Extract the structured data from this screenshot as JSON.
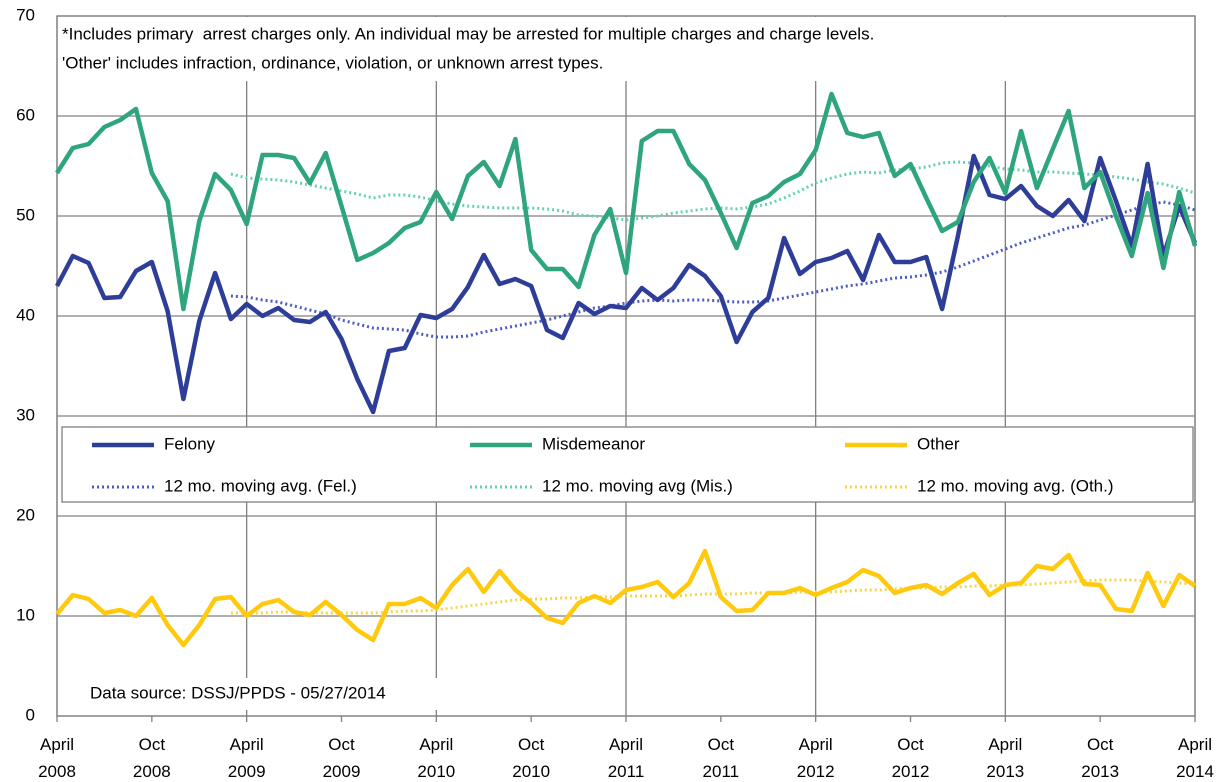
{
  "chart_data": {
    "type": "line",
    "annotations": [
      "*Includes primary  arrest charges only. An individual may be arrested for multiple charges and charge levels.",
      "'Other' includes infraction, ordinance, violation, or unknown arrest types.",
      "Data source: DSSJ/PPDS - 05/27/2014"
    ],
    "categories": [
      "April 2008",
      null,
      null,
      null,
      null,
      null,
      "Oct 2008",
      null,
      null,
      null,
      null,
      null,
      "April 2009",
      null,
      null,
      null,
      null,
      null,
      "Oct 2009",
      null,
      null,
      null,
      null,
      null,
      "April 2010",
      null,
      null,
      null,
      null,
      null,
      "Oct 2010",
      null,
      null,
      null,
      null,
      null,
      "April 2011",
      null,
      null,
      null,
      null,
      null,
      "Oct 2011",
      null,
      null,
      null,
      null,
      null,
      "April 2012",
      null,
      null,
      null,
      null,
      null,
      "Oct 2012",
      null,
      null,
      null,
      null,
      null,
      "April 2013",
      null,
      null,
      null,
      null,
      null,
      "Oct 2013",
      null,
      null,
      null,
      null,
      null,
      "April 2014"
    ],
    "ylim": [
      0,
      70
    ],
    "yticks": [
      0,
      10,
      20,
      30,
      40,
      50,
      60,
      70
    ],
    "grid": true,
    "legend": "center",
    "series": [
      {
        "name": "Felony",
        "color": "#2e3d98",
        "style": "solid",
        "values": [
          43,
          46,
          45.3,
          41.8,
          41.9,
          44.5,
          45.4,
          40.5,
          31.7,
          39.5,
          44.3,
          39.7,
          41.2,
          40,
          40.8,
          39.6,
          39.4,
          40.4,
          37.7,
          33.7,
          30.4,
          36.5,
          36.8,
          40.1,
          39.8,
          40.7,
          42.9,
          46.1,
          43.2,
          43.7,
          43,
          38.6,
          37.8,
          41.3,
          40.2,
          41,
          40.8,
          42.8,
          41.6,
          42.8,
          45.1,
          44,
          42,
          37.4,
          40.4,
          41.8,
          47.8,
          44.2,
          45.4,
          45.8,
          46.5,
          43.6,
          48.1,
          45.4,
          45.4,
          45.9,
          40.7,
          48,
          56,
          52.1,
          51.7,
          53,
          51,
          50,
          51.6,
          49.5,
          55.8,
          51.5,
          47,
          55.2,
          46,
          51,
          47.3
        ]
      },
      {
        "name": "Misdemeanor",
        "color": "#2ea57d",
        "style": "solid",
        "values": [
          54.3,
          56.8,
          57.2,
          58.9,
          59.6,
          60.7,
          54.3,
          51.5,
          40.7,
          49.5,
          54.2,
          52.6,
          49.2,
          56.1,
          56.1,
          55.8,
          53.3,
          56.3,
          51,
          45.6,
          46.3,
          47.3,
          48.8,
          49.4,
          52.4,
          49.7,
          54,
          55.4,
          53,
          57.7,
          46.6,
          44.7,
          44.7,
          42.9,
          48.1,
          50.7,
          44.3,
          57.5,
          58.5,
          58.5,
          55.2,
          53.6,
          50.3,
          46.8,
          51.3,
          52,
          53.4,
          54.2,
          56.6,
          62.2,
          58.3,
          57.9,
          58.3,
          54,
          55.2,
          51.8,
          48.5,
          49.4,
          53.4,
          55.8,
          52.3,
          58.5,
          52.8,
          56.7,
          60.5,
          52.8,
          54.4,
          50,
          46,
          52.3,
          44.8,
          52.4,
          47
        ]
      },
      {
        "name": "Other",
        "color": "#ffc90e",
        "style": "solid",
        "values": [
          10.2,
          12.1,
          11.7,
          10.3,
          10.6,
          10,
          11.8,
          9.1,
          7.1,
          9.1,
          11.7,
          11.9,
          10,
          11.2,
          11.6,
          10.4,
          10.1,
          11.4,
          10.1,
          8.6,
          7.6,
          11.2,
          11.2,
          11.8,
          10.8,
          13.1,
          14.7,
          12.4,
          14.5,
          12.6,
          11.3,
          9.8,
          9.3,
          11.3,
          12,
          11.3,
          12.6,
          12.9,
          13.4,
          11.9,
          13.3,
          16.5,
          11.9,
          10.5,
          10.6,
          12.3,
          12.3,
          12.8,
          12.1,
          12.8,
          13.4,
          14.6,
          14,
          12.3,
          12.8,
          13.1,
          12.2,
          13.3,
          14.2,
          12.1,
          13.1,
          13.3,
          15,
          14.7,
          16.1,
          13.2,
          13.1,
          10.7,
          10.5,
          14.3,
          11,
          14.1,
          13
        ]
      },
      {
        "name": "12 mo. moving avg. (Fel.)",
        "color": "#4a5cc4",
        "style": "dotted",
        "values": [
          null,
          null,
          null,
          null,
          null,
          null,
          null,
          null,
          null,
          null,
          null,
          42,
          41.9,
          41.6,
          41.4,
          41,
          40.6,
          40.2,
          39.6,
          39.2,
          38.8,
          38.7,
          38.6,
          38.2,
          37.9,
          37.9,
          38,
          38.4,
          38.7,
          39,
          39.3,
          39.6,
          40,
          40.4,
          40.8,
          41,
          41.3,
          41.5,
          41.6,
          41.5,
          41.6,
          41.6,
          41.5,
          41.4,
          41.4,
          41.5,
          41.8,
          42.1,
          42.4,
          42.7,
          43,
          43.2,
          43.5,
          43.8,
          43.9,
          44.1,
          44.4,
          44.9,
          45.5,
          46.1,
          46.7,
          47.3,
          47.8,
          48.3,
          48.8,
          49.1,
          49.6,
          50.1,
          50.6,
          51.1,
          51.4,
          51.1,
          50.6
        ]
      },
      {
        "name": "12 mo. moving avg (Mis.)",
        "color": "#62d2b0",
        "style": "dotted",
        "values": [
          null,
          null,
          null,
          null,
          null,
          null,
          null,
          null,
          null,
          null,
          null,
          54.2,
          53.8,
          53.7,
          53.6,
          53.4,
          53.1,
          52.8,
          52.5,
          52.2,
          51.8,
          52.1,
          52.1,
          51.9,
          51.5,
          51.2,
          51,
          50.9,
          50.8,
          50.8,
          50.8,
          50.7,
          50.5,
          50.1,
          50,
          49.8,
          49.6,
          49.8,
          50,
          50.3,
          50.5,
          50.7,
          50.8,
          50.7,
          50.9,
          51.2,
          51.8,
          52.5,
          53.3,
          53.8,
          54.2,
          54.4,
          54.3,
          54.6,
          54.7,
          54.9,
          55.3,
          55.4,
          55.3,
          55,
          54.7,
          54.6,
          54.4,
          54.4,
          54.3,
          54.2,
          54.1,
          53.9,
          53.7,
          53.4,
          53.2,
          52.8,
          52.3
        ]
      },
      {
        "name": "12 mo. moving avg. (Oth.)",
        "color": "#f8d64a",
        "style": "dotted",
        "values": [
          null,
          null,
          null,
          null,
          null,
          null,
          null,
          null,
          null,
          null,
          null,
          10.3,
          10.3,
          10.3,
          10.4,
          10.4,
          10.3,
          10.3,
          10.3,
          10.3,
          10.3,
          10.4,
          10.5,
          10.5,
          10.6,
          10.8,
          11,
          11.2,
          11.4,
          11.6,
          11.7,
          11.7,
          11.8,
          11.8,
          11.9,
          11.9,
          12,
          12,
          12,
          12,
          12.1,
          12.2,
          12.2,
          12.2,
          12.3,
          12.3,
          12.3,
          12.4,
          12.4,
          12.4,
          12.5,
          12.6,
          12.6,
          12.7,
          12.8,
          12.8,
          12.9,
          12.9,
          13,
          13,
          13.1,
          13.1,
          13.2,
          13.3,
          13.4,
          13.5,
          13.6,
          13.6,
          13.6,
          13.5,
          13.4,
          13.3,
          13.2
        ]
      }
    ]
  }
}
